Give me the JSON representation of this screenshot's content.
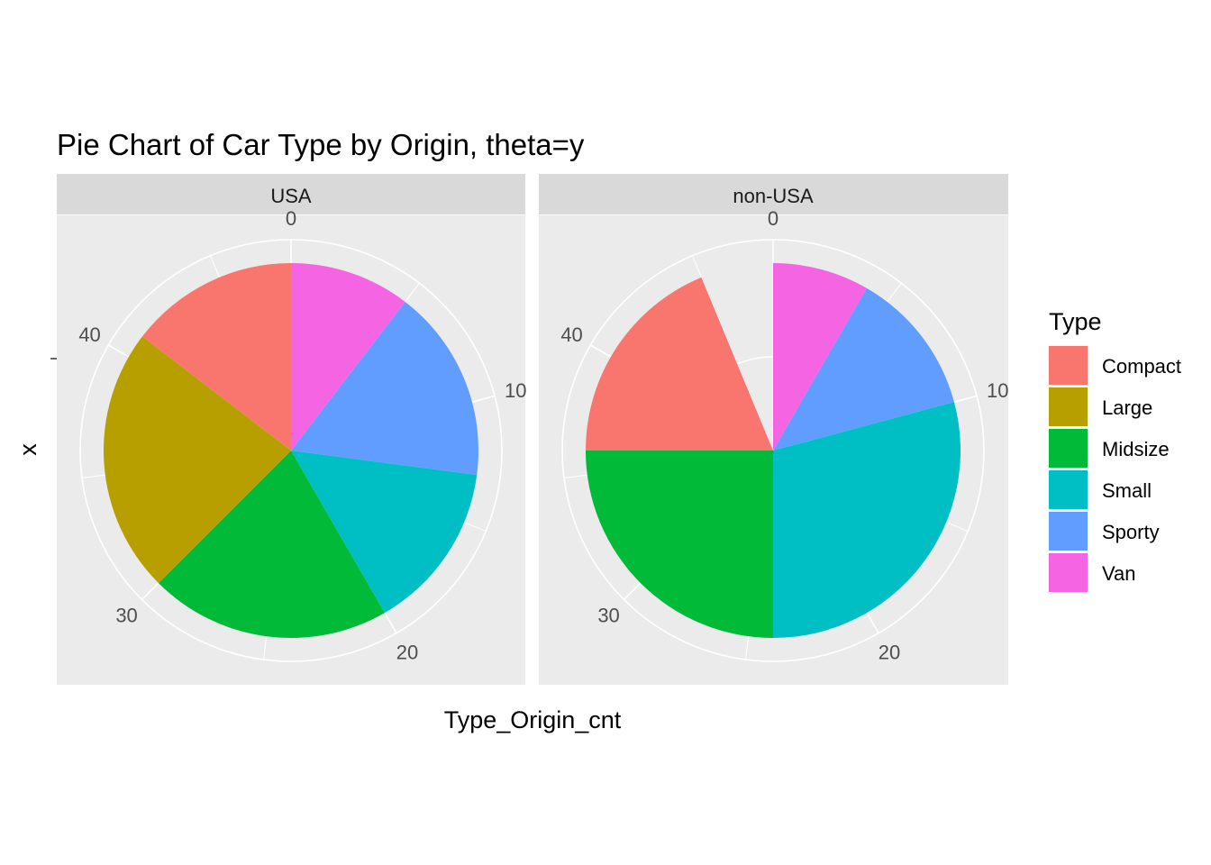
{
  "chart_data": {
    "type": "pie",
    "title": "Pie Chart of Car Type by Origin, theta=y",
    "xlabel": "Type_Origin_cnt",
    "ylabel": "x",
    "theta_ticks": [
      0,
      10,
      20,
      30,
      40
    ],
    "theta_max": 48,
    "categories": [
      "Compact",
      "Large",
      "Midsize",
      "Small",
      "Sporty",
      "Van"
    ],
    "legend": {
      "title": "Type",
      "position": "right"
    },
    "colors": {
      "Compact": "#F8766D",
      "Large": "#B79F00",
      "Midsize": "#00BA38",
      "Small": "#00BFC4",
      "Sporty": "#619CFF",
      "Van": "#F564E3"
    },
    "panels": [
      {
        "name": "USA",
        "values": [
          7,
          11,
          10,
          7,
          8,
          5
        ]
      },
      {
        "name": "non-USA",
        "values": [
          9,
          0,
          12,
          14,
          6,
          4
        ]
      }
    ],
    "stack_order": [
      "Van",
      "Sporty",
      "Small",
      "Midsize",
      "Large",
      "Compact"
    ],
    "grid": true
  },
  "panel_background": "#EBEBEB",
  "strip_background": "#D9D9D9",
  "grid_color": "#FFFFFF"
}
